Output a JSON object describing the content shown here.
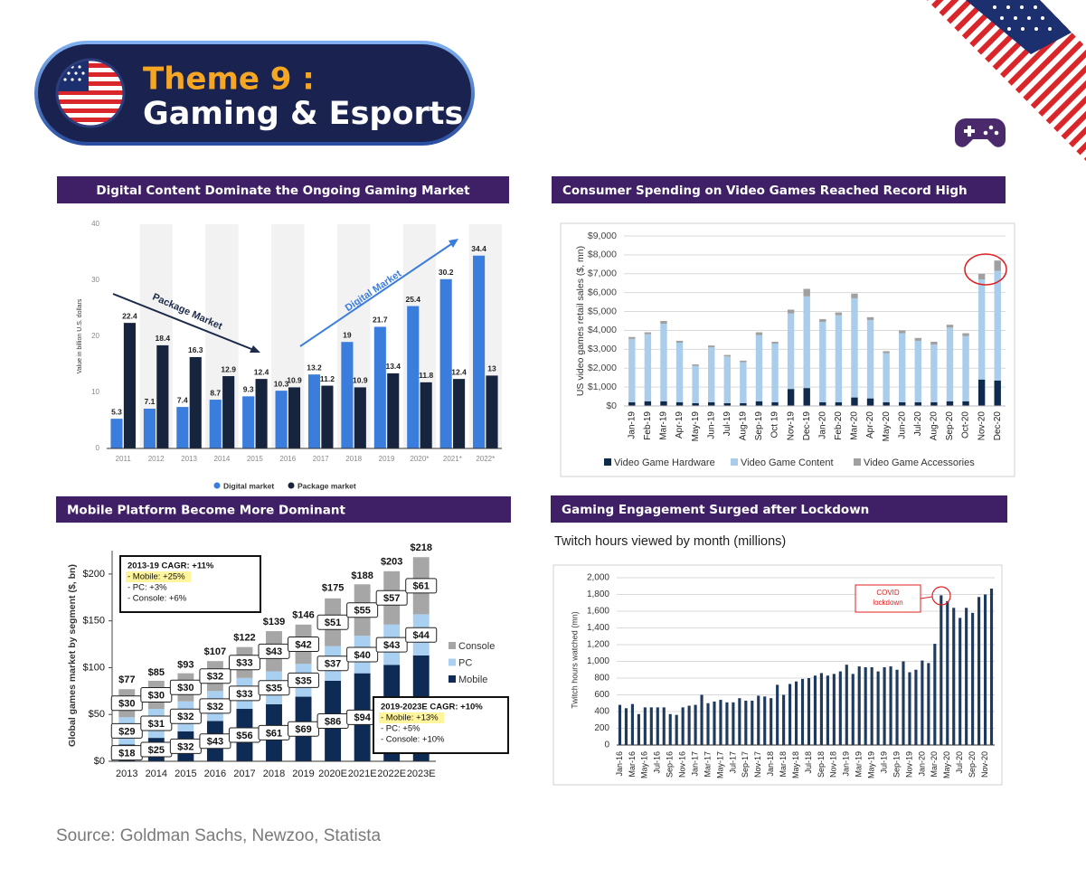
{
  "header": {
    "title_line1": "Theme 9 :",
    "title_line2": "Gaming & Esports"
  },
  "source": "Source: Goldman Sachs, Newzoo, Statista",
  "chart_data": [
    {
      "type": "bar",
      "title": "Digital Content Dominate the Ongoing Gaming Market",
      "y_label": "Value in billion U.S. dollars",
      "categories": [
        "2011",
        "2012",
        "2013",
        "2014",
        "2015",
        "2016",
        "2017",
        "2018",
        "2019",
        "2020*",
        "2021*",
        "2022*"
      ],
      "series": [
        {
          "name": "Digital market",
          "color": "#3b7ddd",
          "values": [
            5.3,
            7.1,
            7.4,
            8.7,
            9.3,
            10.3,
            13.2,
            19,
            21.7,
            25.4,
            30.2,
            34.4
          ]
        },
        {
          "name": "Package market",
          "color": "#17243d",
          "values": [
            22.4,
            18.4,
            16.3,
            12.9,
            12.4,
            10.9,
            11.2,
            10.9,
            13.4,
            11.8,
            12.4,
            13
          ]
        }
      ],
      "ylim": [
        0,
        40
      ],
      "yticks": [
        0,
        10,
        20,
        30,
        40
      ],
      "grid": false,
      "legend": "bottom",
      "data_labels": true,
      "annotations": [
        "Package Market",
        "Digital Market"
      ]
    },
    {
      "type": "stacked_bar",
      "title": "Consumer Spending on Video Games Reached Record High",
      "y_label": "US video games retail sales ($, mn)",
      "categories": [
        "Jan-19",
        "Feb-19",
        "Mar-19",
        "Apr-19",
        "May-19",
        "Jun-19",
        "Jul-19",
        "Aug-19",
        "Sep-19",
        "Oct 19",
        "Nov-19",
        "Dec-19",
        "Jan-20",
        "Feb-20",
        "Mar-20",
        "Apr-20",
        "May-20",
        "Jun-20",
        "Jul-20",
        "Aug-20",
        "Sep-20",
        "Oct-20",
        "Nov-20",
        "Dec-20"
      ],
      "series": [
        {
          "name": "Video Game Hardware",
          "color": "#0e2a4d",
          "values": [
            200,
            250,
            250,
            200,
            150,
            200,
            150,
            150,
            250,
            200,
            900,
            950,
            200,
            200,
            450,
            400,
            200,
            200,
            200,
            200,
            250,
            250,
            1400,
            1350
          ]
        },
        {
          "name": "Video Game Content",
          "color": "#a9cdeb",
          "values": [
            3350,
            3550,
            4100,
            3150,
            1970,
            2900,
            2470,
            2170,
            3500,
            3100,
            4000,
            4850,
            4250,
            4600,
            5250,
            4150,
            2600,
            3650,
            3250,
            3050,
            3900,
            3450,
            5300,
            5800
          ]
        },
        {
          "name": "Video Game Accessories",
          "color": "#a0a0a0",
          "values": [
            100,
            100,
            150,
            100,
            80,
            100,
            80,
            80,
            150,
            100,
            200,
            400,
            150,
            150,
            250,
            150,
            100,
            150,
            150,
            150,
            150,
            150,
            300,
            550
          ]
        }
      ],
      "ylim": [
        0,
        9000
      ],
      "yticks": [
        {
          "value": 0,
          "label": "$0"
        },
        {
          "value": 1000,
          "label": "$1,000"
        },
        {
          "value": 2000,
          "label": "$2,000"
        },
        {
          "value": 3000,
          "label": "$3,000"
        },
        {
          "value": 4000,
          "label": "$4,000"
        },
        {
          "value": 5000,
          "label": "$5,000"
        },
        {
          "value": 6000,
          "label": "$6,000"
        },
        {
          "value": 7000,
          "label": "$7,000"
        },
        {
          "value": 8000,
          "label": "$8,000"
        },
        {
          "value": 9000,
          "label": "$9,000"
        }
      ],
      "grid": true,
      "legend": "bottom"
    },
    {
      "type": "stacked_bar",
      "title": "Mobile Platform Become More Dominant",
      "y_label": "Global games market by segment ($, bn)",
      "categories": [
        "2013",
        "2014",
        "2015",
        "2016",
        "2017",
        "2018",
        "2019",
        "2020E",
        "2021E",
        "2022E",
        "2023E"
      ],
      "series": [
        {
          "name": "Mobile",
          "color": "#0d2b55",
          "values": [
            18,
            25,
            32,
            43,
            56,
            61,
            69,
            86,
            94,
            103,
            113
          ],
          "value_labels": [
            "$18",
            "$25",
            "$32",
            "$43",
            "$56",
            "$61",
            "$69",
            "$86",
            "$94",
            null,
            null
          ]
        },
        {
          "name": "PC",
          "color": "#a9d0f0",
          "values": [
            29,
            31,
            32,
            32,
            33,
            35,
            35,
            37,
            40,
            43,
            44
          ],
          "value_labels": [
            "$29",
            "$31",
            "$32",
            "$32",
            "$33",
            "$35",
            "$35",
            "$37",
            "$40",
            "$43",
            "$44"
          ]
        },
        {
          "name": "Console",
          "color": "#a6a6a6",
          "values": [
            30,
            30,
            30,
            32,
            33,
            43,
            42,
            51,
            55,
            57,
            61
          ],
          "value_labels": [
            "$30",
            "$30",
            "$30",
            "$32",
            "$33",
            "$43",
            "$42",
            "$51",
            "$55",
            "$57",
            "$61"
          ]
        }
      ],
      "totals": {
        "values": [
          77,
          85,
          93,
          107,
          122,
          139,
          146,
          175,
          188,
          203,
          218
        ],
        "value_labels": [
          "$77",
          "$85",
          "$93",
          "$107",
          "$122",
          "$139",
          "$146",
          "$175",
          "$188",
          "$203",
          "$218"
        ]
      },
      "ylim": [
        0,
        225
      ],
      "yticks": [
        {
          "value": 0,
          "label": "$0"
        },
        {
          "value": 50,
          "label": "$50"
        },
        {
          "value": 100,
          "label": "$100"
        },
        {
          "value": 150,
          "label": "$150"
        },
        {
          "value": 200,
          "label": "$200"
        }
      ],
      "grid": false,
      "legend": "right",
      "notes": [
        [
          "2013-19 CAGR: +11%",
          "- Mobile: +25%",
          "- PC: +3%",
          "- Console: +6%"
        ],
        [
          "2019-2023E CAGR: +10%",
          "- Mobile: +13%",
          "- PC: +5%",
          "- Console: +10%"
        ]
      ]
    },
    {
      "type": "bar",
      "title": "Gaming Engagement Surged after Lockdown",
      "subtitle": "Twitch hours viewed by month (millions)",
      "y_label": "Twitch hours watched (mn)",
      "categories": [
        "Jan-16",
        null,
        "Mar-16",
        null,
        "May-16",
        null,
        "Jul-16",
        null,
        "Sep-16",
        null,
        "Nov-16",
        null,
        "Jan-17",
        null,
        "Mar-17",
        null,
        "May-17",
        null,
        "Jul-17",
        null,
        "Sep-17",
        null,
        "Nov-17",
        null,
        "Jan-18",
        null,
        "Mar-18",
        null,
        "May-18",
        null,
        "Jul-18",
        null,
        "Sep-18",
        null,
        "Nov-18",
        null,
        "Jan-19",
        null,
        "Mar-19",
        null,
        "May-19",
        null,
        "Jul-19",
        null,
        "Sep-19",
        null,
        "Nov-19",
        null,
        "Jan-20",
        null,
        "Mar-20",
        null,
        "May-20",
        null,
        "Jul-20",
        null,
        "Sep-20",
        null,
        "Nov-20",
        null
      ],
      "values": [
        480,
        440,
        490,
        370,
        450,
        450,
        450,
        450,
        370,
        360,
        450,
        470,
        480,
        600,
        500,
        520,
        540,
        510,
        510,
        560,
        530,
        530,
        590,
        580,
        560,
        720,
        600,
        730,
        760,
        790,
        800,
        830,
        860,
        830,
        850,
        880,
        960,
        850,
        940,
        930,
        930,
        880,
        930,
        940,
        900,
        1000,
        870,
        900,
        1010,
        980,
        1210,
        1790,
        1720,
        1640,
        1520,
        1640,
        1580,
        1770,
        1800,
        1870
      ],
      "color": "#1f3a5f",
      "ylim": [
        0,
        2000
      ],
      "yticks": [
        0,
        200,
        400,
        600,
        800,
        {
          "value": 1000,
          "label": "1,000"
        },
        {
          "value": 1200,
          "label": "1,200"
        },
        {
          "value": 1400,
          "label": "1,400"
        },
        {
          "value": 1600,
          "label": "1,600"
        },
        {
          "value": 1800,
          "label": "1,800"
        },
        {
          "value": 2000,
          "label": "2,000"
        }
      ],
      "grid": true,
      "annotations": [
        "COVID",
        "lockdown"
      ]
    }
  ]
}
